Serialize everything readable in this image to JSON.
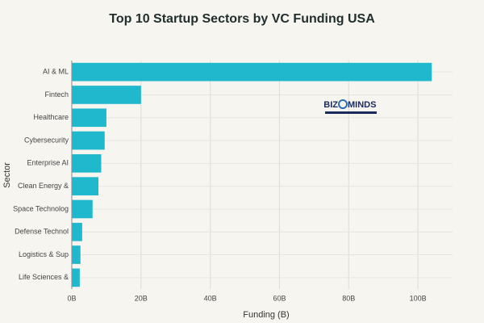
{
  "chart_data": {
    "type": "hbar",
    "title": "Top 10 Startup Sectors by VC Funding USA",
    "x_label": "Funding (B)",
    "y_label": "Sector",
    "categories": [
      "AI & ML",
      "Fintech",
      "Healthcare",
      "Cybersecurity",
      "Enterprise AI",
      "Clean Energy &",
      "Space Technolog",
      "Defense Technol",
      "Logistics & Sup",
      "Life Sciences &"
    ],
    "values": [
      104,
      20,
      10,
      9.5,
      8.5,
      7.7,
      6,
      3,
      2.5,
      2.3
    ],
    "color": "#1fb8cd",
    "xlim": [
      0,
      110
    ],
    "xticks": [
      {
        "value": 0,
        "label": "0B"
      },
      {
        "value": 20,
        "label": "20B"
      },
      {
        "value": 40,
        "label": "40B"
      },
      {
        "value": 60,
        "label": "60B"
      },
      {
        "value": 80,
        "label": "80B"
      },
      {
        "value": 100,
        "label": "100B"
      }
    ],
    "grid": true,
    "logo": [
      "BIZ",
      "MINDS"
    ]
  }
}
